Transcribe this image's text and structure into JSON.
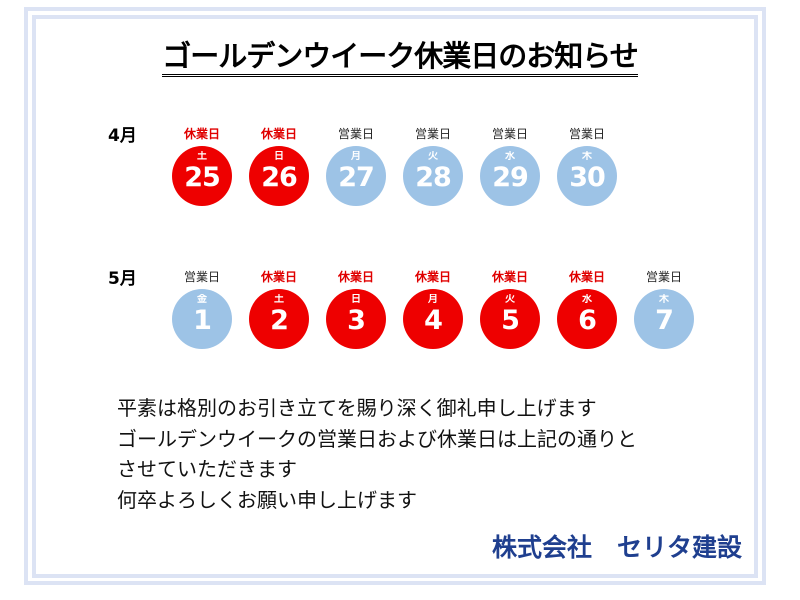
{
  "title": "ゴールデンウイーク休業日のお知らせ",
  "colors": {
    "holiday": "#ee0000",
    "workday": "#9dc3e6",
    "company": "#1f3f8f",
    "frame": "#dce3f4"
  },
  "months": [
    {
      "label": "4月",
      "days": [
        {
          "status": "休業日",
          "weekday": "土",
          "date": "25",
          "type": "holiday"
        },
        {
          "status": "休業日",
          "weekday": "日",
          "date": "26",
          "type": "holiday"
        },
        {
          "status": "営業日",
          "weekday": "月",
          "date": "27",
          "type": "workday"
        },
        {
          "status": "営業日",
          "weekday": "火",
          "date": "28",
          "type": "workday"
        },
        {
          "status": "営業日",
          "weekday": "水",
          "date": "29",
          "type": "workday"
        },
        {
          "status": "営業日",
          "weekday": "木",
          "date": "30",
          "type": "workday"
        }
      ]
    },
    {
      "label": "5月",
      "days": [
        {
          "status": "営業日",
          "weekday": "金",
          "date": "1",
          "type": "workday"
        },
        {
          "status": "休業日",
          "weekday": "土",
          "date": "2",
          "type": "holiday"
        },
        {
          "status": "休業日",
          "weekday": "日",
          "date": "3",
          "type": "holiday"
        },
        {
          "status": "休業日",
          "weekday": "月",
          "date": "4",
          "type": "holiday"
        },
        {
          "status": "休業日",
          "weekday": "火",
          "date": "5",
          "type": "holiday"
        },
        {
          "status": "休業日",
          "weekday": "水",
          "date": "6",
          "type": "holiday"
        },
        {
          "status": "営業日",
          "weekday": "木",
          "date": "7",
          "type": "workday"
        }
      ]
    }
  ],
  "message": [
    "平素は格別のお引き立てを賜り深く御礼申し上げます",
    "ゴールデンウイークの営業日および休業日は上記の通りと",
    "させていただきます",
    "何卒よろしくお願い申し上げます"
  ],
  "company": "株式会社　セリタ建設"
}
